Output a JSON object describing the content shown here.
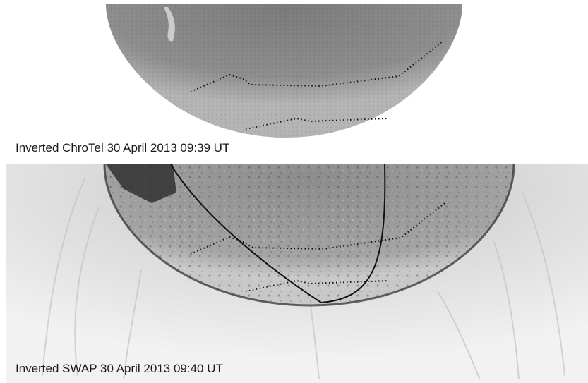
{
  "panels": {
    "top": {
      "caption": "Inverted ChroTel 30 April 2013 09:39 UT"
    },
    "bottom": {
      "caption": "Inverted SWAP 30 April 2013 09:40 UT"
    }
  },
  "colors": {
    "chrotel_disk": "#8a8a8a",
    "swap_disk": "#9a9a9a",
    "swap_corona": "#ececec",
    "contour": "#111111"
  }
}
